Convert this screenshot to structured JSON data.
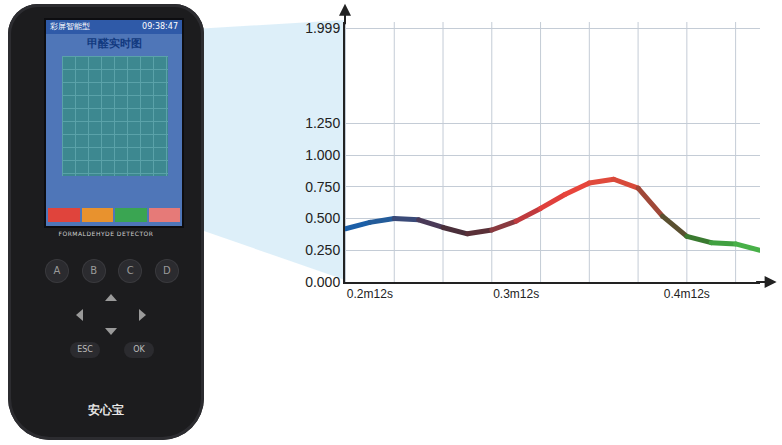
{
  "chart_data": {
    "type": "line",
    "categories": [
      null,
      "0.2m12s",
      null,
      null,
      null,
      null,
      null,
      "0.3m12s",
      null,
      null,
      null,
      null,
      null,
      null,
      "0.4m12s",
      null,
      null,
      null
    ],
    "values": [
      0.42,
      0.47,
      0.5,
      0.49,
      0.43,
      0.38,
      0.41,
      0.48,
      0.58,
      0.69,
      0.78,
      0.81,
      0.74,
      0.52,
      0.36,
      0.31,
      0.3,
      0.25
    ],
    "colors": [
      "#1b5fa8",
      "#245c9a",
      "#3a4a78",
      "#4a3a58",
      "#4a2f3a",
      "#5a3038",
      "#8a3a40",
      "#c03a3e",
      "#e0403c",
      "#e8453c",
      "#e04a3c",
      "#d84a3a",
      "#a04838",
      "#5a5030",
      "#3a7a30",
      "#40a040",
      "#48b048",
      "#50b850"
    ],
    "ylim": [
      0,
      2.05
    ],
    "yticks": [
      {
        "value": 0,
        "label": "0.000"
      },
      {
        "value": 0.25,
        "label": "0.250"
      },
      {
        "value": 0.5,
        "label": "0.500"
      },
      {
        "value": 0.75,
        "label": "0.750"
      },
      {
        "value": 1,
        "label": "1.000"
      },
      {
        "value": 1.25,
        "label": "1.250"
      },
      1.999
    ],
    "grid": true
  },
  "device": {
    "header": "彩屏智能型",
    "time": "09:38:47",
    "screen_title": "甲醛实时图",
    "model": "FORMALDEHYDE DETECTOR",
    "keys": [
      "A",
      "B",
      "C",
      "D"
    ],
    "nav": [
      "ESC",
      "OK"
    ],
    "brand": "安心宝"
  }
}
